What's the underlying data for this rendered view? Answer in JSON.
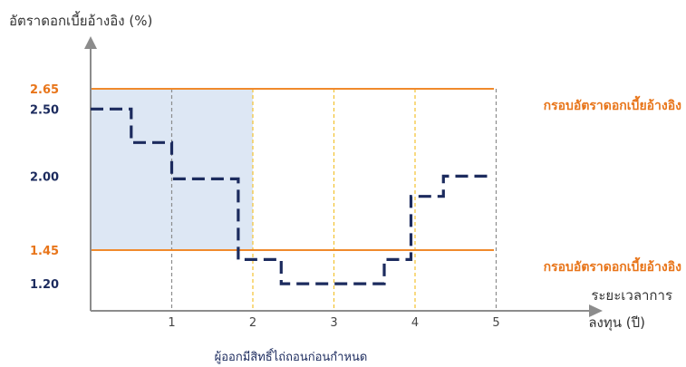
{
  "chart_data": {
    "type": "line",
    "ylabel": "อัตราดอกเบี้ยอ้างอิง (%)",
    "xlabel": "ระยะเวลาการ ลงทุน (ปี)",
    "xlabel_lines": [
      "ระยะเวลาการ",
      "ลงทุน (ปี)"
    ],
    "caption": "ผู้ออกมีสิทธิ์ไถ่ถอนก่อนกำหนด",
    "xticks": [
      {
        "value": 1,
        "label": "1"
      },
      {
        "value": 2,
        "label": "2"
      },
      {
        "value": 3,
        "label": "3"
      },
      {
        "value": 4,
        "label": "4"
      },
      {
        "value": 5,
        "label": "5"
      }
    ],
    "yticks": [
      {
        "value": 2.65,
        "label": "2.65",
        "highlight": true
      },
      {
        "value": 2.5,
        "label": "2.50",
        "highlight": false
      },
      {
        "value": 2.0,
        "label": "2.00",
        "highlight": false
      },
      {
        "value": 1.45,
        "label": "1.45",
        "highlight": true
      },
      {
        "value": 1.2,
        "label": "1.20",
        "highlight": false
      }
    ],
    "reference_lines": [
      {
        "value": 2.65,
        "label": "กรอบอัตราดอกเบี้ยอ้างอิง",
        "color": "#f08a2c"
      },
      {
        "value": 1.45,
        "label": "กรอบอัตราดอกเบี้ยอ้างอิง",
        "color": "#f08a2c"
      }
    ],
    "shaded_region": {
      "x_from": 0,
      "x_to": 2,
      "y_from": 1.45,
      "y_to": 2.65,
      "color": "#dde7f4"
    },
    "series": [
      {
        "style": "dashed-step",
        "color": "#1c2b5e",
        "points": [
          {
            "x": 0.0,
            "y": 2.5
          },
          {
            "x": 0.5,
            "y": 2.5
          },
          {
            "x": 0.5,
            "y": 2.25
          },
          {
            "x": 1.0,
            "y": 2.25
          },
          {
            "x": 1.0,
            "y": 1.98
          },
          {
            "x": 1.82,
            "y": 1.98
          },
          {
            "x": 1.82,
            "y": 1.38
          },
          {
            "x": 2.35,
            "y": 1.38
          },
          {
            "x": 2.35,
            "y": 1.2
          },
          {
            "x": 3.62,
            "y": 1.2
          },
          {
            "x": 3.62,
            "y": 1.38
          },
          {
            "x": 3.95,
            "y": 1.38
          },
          {
            "x": 3.95,
            "y": 1.85
          },
          {
            "x": 4.35,
            "y": 1.85
          },
          {
            "x": 4.35,
            "y": 2.0
          },
          {
            "x": 4.95,
            "y": 2.0
          }
        ]
      }
    ],
    "vertical_guides": [
      {
        "x": 1,
        "color": "#8c8c8c"
      },
      {
        "x": 2,
        "color": "#f2c230"
      },
      {
        "x": 3,
        "color": "#f2c230"
      },
      {
        "x": 4,
        "color": "#f2c230"
      },
      {
        "x": 5,
        "color": "#8c8c8c"
      }
    ],
    "colors": {
      "axis": "#8c8c8c",
      "tick_label": "#1c2b5e",
      "highlight_tick": "#e8751a",
      "reference_label": "#e8751a",
      "title": "#333333"
    }
  }
}
